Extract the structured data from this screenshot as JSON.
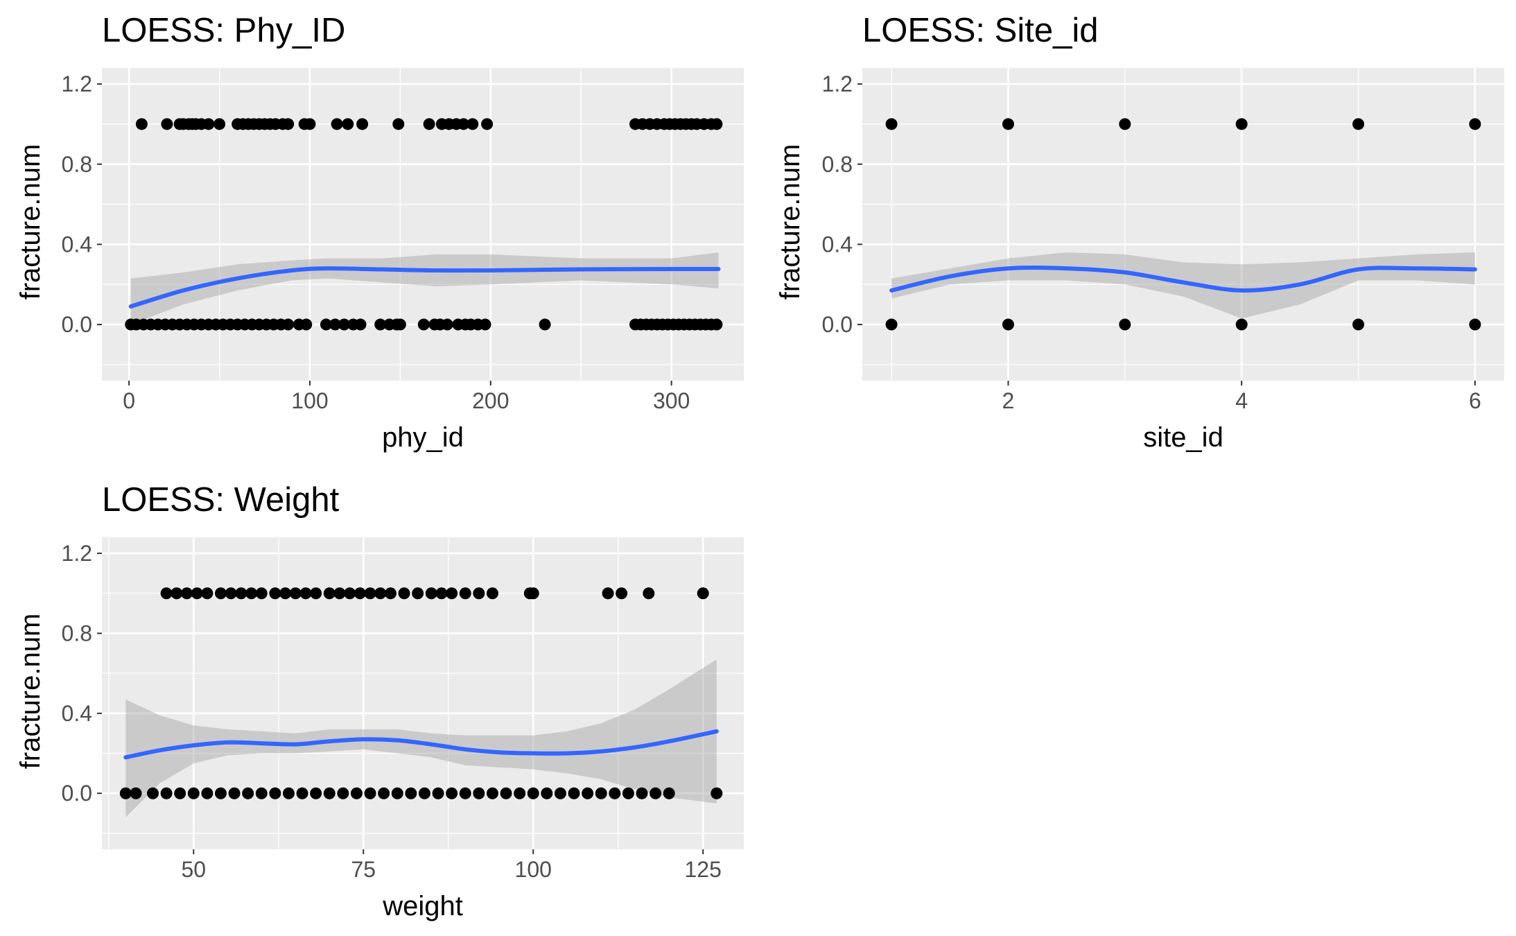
{
  "chart_data": [
    {
      "type": "scatter",
      "title": "LOESS: Phy_ID",
      "xlabel": "phy_id",
      "ylabel": "fracture.num",
      "xlim": [
        -15,
        340
      ],
      "ylim": [
        -0.28,
        1.28
      ],
      "xticks": [
        0,
        100,
        200,
        300
      ],
      "xtick_labels": [
        "0",
        "100",
        "200",
        "300"
      ],
      "yticks": [
        0.0,
        0.4,
        0.8,
        1.2
      ],
      "ytick_labels": [
        "0.0",
        "0.4",
        "0.8",
        "1.2"
      ],
      "grid": true,
      "points": {
        "y1": [
          7,
          21,
          28,
          30,
          33,
          35,
          37,
          40,
          44,
          50,
          60,
          63,
          66,
          69,
          72,
          75,
          78,
          81,
          85,
          88,
          97,
          100,
          115,
          121,
          129,
          149,
          166,
          173,
          177,
          181,
          185,
          190,
          198,
          280,
          284,
          288,
          292,
          296,
          299,
          302,
          305,
          308,
          311,
          314,
          318,
          322,
          325
        ],
        "y0": [
          1,
          4,
          8,
          12,
          16,
          20,
          24,
          28,
          32,
          36,
          40,
          44,
          48,
          52,
          56,
          60,
          64,
          68,
          72,
          76,
          80,
          84,
          88,
          94,
          98,
          109,
          114,
          119,
          124,
          128,
          139,
          144,
          148,
          150,
          163,
          169,
          172,
          176,
          182,
          186,
          189,
          193,
          197,
          230,
          280,
          283,
          286,
          289,
          292,
          295,
          298,
          301,
          304,
          307,
          310,
          313,
          316,
          319,
          322,
          325
        ]
      },
      "loess": {
        "x": [
          1,
          30,
          60,
          90,
          110,
          140,
          170,
          200,
          250,
          300,
          326
        ],
        "y": [
          0.09,
          0.17,
          0.23,
          0.27,
          0.28,
          0.275,
          0.27,
          0.27,
          0.275,
          0.277,
          0.277
        ],
        "lo": [
          0.0,
          0.1,
          0.17,
          0.22,
          0.23,
          0.21,
          0.19,
          0.2,
          0.22,
          0.2,
          0.18
        ],
        "hi": [
          0.23,
          0.26,
          0.3,
          0.32,
          0.33,
          0.33,
          0.35,
          0.35,
          0.33,
          0.33,
          0.36
        ]
      },
      "colors": {
        "points": "#000000",
        "line": "#3366ff",
        "band": "#999999",
        "panel": "#ebebeb",
        "grid": "#ffffff"
      }
    },
    {
      "type": "scatter",
      "title": "LOESS: Site_id",
      "xlabel": "site_id",
      "ylabel": "fracture.num",
      "xlim": [
        0.75,
        6.25
      ],
      "ylim": [
        -0.28,
        1.28
      ],
      "xticks": [
        2,
        4,
        6
      ],
      "xtick_labels": [
        "2",
        "4",
        "6"
      ],
      "yticks": [
        0.0,
        0.4,
        0.8,
        1.2
      ],
      "ytick_labels": [
        "0.0",
        "0.4",
        "0.8",
        "1.2"
      ],
      "grid": true,
      "points": {
        "y1": [
          1,
          2,
          3,
          4,
          5,
          6
        ],
        "y0": [
          1,
          2,
          3,
          4,
          5,
          6
        ]
      },
      "loess": {
        "x": [
          1,
          1.5,
          2,
          2.5,
          3,
          3.5,
          4,
          4.5,
          5,
          5.5,
          6
        ],
        "y": [
          0.17,
          0.24,
          0.28,
          0.28,
          0.26,
          0.21,
          0.17,
          0.2,
          0.275,
          0.28,
          0.275
        ],
        "lo": [
          0.13,
          0.2,
          0.22,
          0.22,
          0.2,
          0.14,
          0.03,
          0.1,
          0.22,
          0.22,
          0.2
        ],
        "hi": [
          0.23,
          0.28,
          0.33,
          0.36,
          0.35,
          0.31,
          0.3,
          0.31,
          0.33,
          0.35,
          0.36
        ]
      },
      "colors": {
        "points": "#000000",
        "line": "#3366ff",
        "band": "#999999",
        "panel": "#ebebeb",
        "grid": "#ffffff"
      }
    },
    {
      "type": "scatter",
      "title": "LOESS: Weight",
      "xlabel": "weight",
      "ylabel": "fracture.num",
      "xlim": [
        36.5,
        131
      ],
      "ylim": [
        -0.28,
        1.28
      ],
      "xticks": [
        50,
        75,
        100,
        125
      ],
      "xtick_labels": [
        "50",
        "75",
        "100",
        "125"
      ],
      "yticks": [
        0.0,
        0.4,
        0.8,
        1.2
      ],
      "ytick_labels": [
        "0.0",
        "0.4",
        "0.8",
        "1.2"
      ],
      "grid": true,
      "points": {
        "y1": [
          46,
          47.5,
          49,
          50.5,
          52,
          54,
          55.5,
          57,
          58.5,
          60,
          62,
          63.5,
          65,
          66.5,
          68,
          70,
          71.5,
          73,
          74.5,
          76,
          77.5,
          79,
          81,
          83,
          85,
          86.5,
          88,
          90,
          92,
          94,
          99.5,
          100,
          111,
          113,
          117,
          125
        ],
        "y0": [
          40,
          41.5,
          44,
          46,
          48,
          50,
          52,
          54,
          56,
          58,
          60,
          62,
          64,
          66,
          68,
          70,
          72,
          74,
          76,
          78,
          80,
          82,
          84,
          86,
          88,
          90,
          92,
          94,
          96,
          98,
          100,
          102,
          104,
          106,
          108,
          110,
          112,
          114,
          116,
          118,
          120,
          127
        ]
      },
      "loess": {
        "x": [
          40,
          45,
          50,
          55,
          60,
          65,
          70,
          75,
          80,
          85,
          90,
          95,
          100,
          105,
          110,
          115,
          120,
          127
        ],
        "y": [
          0.18,
          0.215,
          0.24,
          0.255,
          0.25,
          0.245,
          0.26,
          0.27,
          0.265,
          0.245,
          0.22,
          0.205,
          0.2,
          0.2,
          0.21,
          0.23,
          0.26,
          0.31
        ],
        "lo": [
          -0.12,
          0.05,
          0.15,
          0.19,
          0.2,
          0.2,
          0.21,
          0.22,
          0.2,
          0.18,
          0.14,
          0.13,
          0.12,
          0.1,
          0.07,
          0.02,
          -0.02,
          -0.05
        ],
        "hi": [
          0.47,
          0.39,
          0.34,
          0.32,
          0.31,
          0.3,
          0.32,
          0.32,
          0.32,
          0.3,
          0.29,
          0.29,
          0.29,
          0.31,
          0.35,
          0.42,
          0.52,
          0.67
        ]
      },
      "colors": {
        "points": "#000000",
        "line": "#3366ff",
        "band": "#999999",
        "panel": "#ebebeb",
        "grid": "#ffffff"
      }
    }
  ]
}
